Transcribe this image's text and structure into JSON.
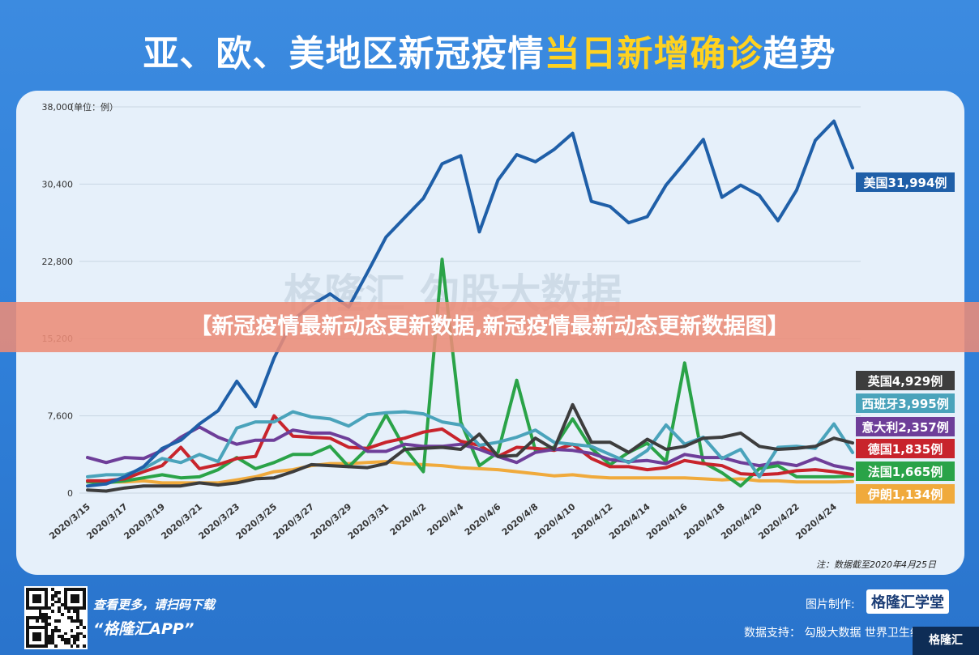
{
  "page": {
    "title_white_1": "亚、欧、美地区新冠疫情",
    "title_yellow": "当日新增确诊",
    "title_white_2": "趋势",
    "banner": "【新冠疫情最新动态更新数据,新冠疫情最新动态更新数据图】",
    "scan_line1": "查看更多，请扫码下载",
    "scan_line2": "“格隆汇APP”",
    "credit_label": "图片制作:",
    "credit_brand": "格隆汇学堂",
    "support": "数据支持： 勾股大数据  世界卫生组织",
    "corner_logo": "格隆汇"
  },
  "chart_data": {
    "type": "line",
    "ylabel": "（单位：例）",
    "ylim": [
      0,
      38000
    ],
    "yticks": [
      "0",
      "7,600",
      "15,200",
      "22,800",
      "30,400",
      "38,000"
    ],
    "ytick_values": [
      0,
      7600,
      15200,
      22800,
      30400,
      38000
    ],
    "x": [
      "2020/3/15",
      "2020/3/16",
      "2020/3/17",
      "2020/3/18",
      "2020/3/19",
      "2020/3/20",
      "2020/3/21",
      "2020/3/22",
      "2020/3/23",
      "2020/3/24",
      "2020/3/25",
      "2020/3/26",
      "2020/3/27",
      "2020/3/28",
      "2020/3/29",
      "2020/3/30",
      "2020/3/31",
      "2020/4/1",
      "2020/4/2",
      "2020/4/3",
      "2020/4/4",
      "2020/4/5",
      "2020/4/6",
      "2020/4/7",
      "2020/4/8",
      "2020/4/9",
      "2020/4/10",
      "2020/4/11",
      "2020/4/12",
      "2020/4/13",
      "2020/4/14",
      "2020/4/15",
      "2020/4/16",
      "2020/4/17",
      "2020/4/18",
      "2020/4/19",
      "2020/4/20",
      "2020/4/21",
      "2020/4/22",
      "2020/4/23",
      "2020/4/24",
      "2020/4/25"
    ],
    "xtick_labels": [
      "2020/3/15",
      "2020/3/17",
      "2020/3/19",
      "2020/3/21",
      "2020/3/23",
      "2020/3/25",
      "2020/3/27",
      "2020/3/29",
      "2020/3/31",
      "2020/4/2",
      "2020/4/4",
      "2020/4/6",
      "2020/4/8",
      "2020/4/10",
      "2020/4/12",
      "2020/4/14",
      "2020/4/16",
      "2020/4/18",
      "2020/4/20",
      "2020/4/22",
      "2020/4/24"
    ],
    "note": "注：数据截至2020年4月25日",
    "watermark": "格隆汇  勾股大数据",
    "series": [
      {
        "label": "美国31,994例",
        "color": "#1f5fa8",
        "values": [
          700,
          900,
          1600,
          2600,
          4400,
          5200,
          6800,
          8100,
          11000,
          8500,
          13300,
          17000,
          18500,
          19600,
          18300,
          21700,
          25200,
          27100,
          29000,
          32400,
          33200,
          25700,
          30800,
          33300,
          32600,
          33800,
          35400,
          28700,
          28200,
          26600,
          27200,
          30300,
          32500,
          34800,
          29100,
          30300,
          29300,
          26800,
          29800,
          34700,
          36600,
          31994
        ]
      },
      {
        "label": "英国4,929例",
        "color": "#3d3d3d",
        "values": [
          300,
          200,
          500,
          700,
          700,
          700,
          1000,
          800,
          1000,
          1400,
          1500,
          2100,
          2800,
          2700,
          2600,
          2500,
          2900,
          4300,
          4400,
          4500,
          4300,
          5800,
          3600,
          3700,
          5400,
          4300,
          8700,
          5000,
          5000,
          4000,
          5300,
          4300,
          4600,
          5400,
          5500,
          5900,
          4600,
          4300,
          4400,
          4600,
          5400,
          4929
        ]
      },
      {
        "label": "西班牙3,995例",
        "color": "#4aa3bb",
        "values": [
          1600,
          1800,
          1800,
          2400,
          3400,
          3000,
          3800,
          3100,
          6400,
          7000,
          7000,
          8000,
          7500,
          7300,
          6600,
          7700,
          7900,
          8000,
          7800,
          7000,
          6700,
          4700,
          5000,
          5500,
          6200,
          5000,
          4800,
          4600,
          3800,
          3000,
          4200,
          6700,
          4800,
          5500,
          3400,
          4300,
          1600,
          4500,
          4600,
          4400,
          6800,
          3995
        ]
      },
      {
        "label": "意大利2,357例",
        "color": "#6e3e99",
        "values": [
          3500,
          3000,
          3500,
          3400,
          4200,
          5500,
          6500,
          5500,
          4800,
          5200,
          5200,
          6200,
          5900,
          5900,
          5300,
          4100,
          4100,
          4800,
          4600,
          4600,
          4800,
          4300,
          3600,
          3000,
          4000,
          4300,
          4200,
          3900,
          3300,
          3100,
          3200,
          2900,
          3800,
          3500,
          3500,
          3000,
          2700,
          3000,
          2700,
          3400,
          2700,
          2357
        ]
      },
      {
        "label": "德国1,835例",
        "color": "#c8242c",
        "values": [
          1200,
          1200,
          1400,
          2100,
          2700,
          4500,
          2400,
          2800,
          3400,
          3600,
          7600,
          5600,
          5500,
          5400,
          4500,
          4400,
          5000,
          5400,
          6000,
          6300,
          5100,
          4700,
          3600,
          4500,
          4400,
          4200,
          4800,
          3400,
          2600,
          2600,
          2300,
          2500,
          3200,
          2900,
          2700,
          1900,
          1800,
          1900,
          2200,
          2300,
          2100,
          1835
        ]
      },
      {
        "label": "法国1,665例",
        "color": "#2aa348",
        "values": [
          1100,
          1000,
          1200,
          1500,
          1800,
          1500,
          1600,
          2300,
          3500,
          2400,
          3000,
          3800,
          3800,
          4600,
          2600,
          4400,
          7700,
          4400,
          2100,
          23000,
          7000,
          2700,
          4000,
          11100,
          4200,
          4500,
          7300,
          4400,
          2800,
          4000,
          4900,
          3100,
          12800,
          3000,
          2000,
          700,
          2400,
          2700,
          1600,
          1600,
          1600,
          1665
        ]
      },
      {
        "label": "伊朗1,134例",
        "color": "#f0aa3c",
        "values": [
          1200,
          1100,
          1100,
          1200,
          1000,
          1000,
          1000,
          1000,
          1300,
          1600,
          2100,
          2300,
          2700,
          2900,
          2900,
          3000,
          3100,
          2900,
          2800,
          2700,
          2500,
          2400,
          2300,
          2100,
          1900,
          1700,
          1800,
          1600,
          1500,
          1500,
          1500,
          1500,
          1500,
          1400,
          1300,
          1400,
          1200,
          1200,
          1100,
          1100,
          1100,
          1134
        ]
      }
    ]
  }
}
